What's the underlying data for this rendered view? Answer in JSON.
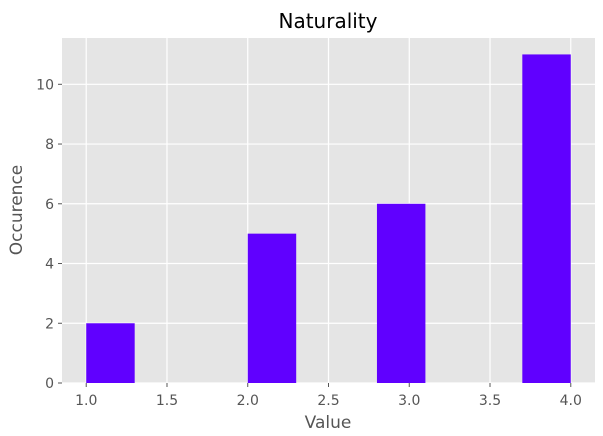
{
  "chart_data": {
    "type": "bar",
    "title": "Naturality",
    "xlabel": "Value",
    "ylabel": "Occurence",
    "xlim": [
      0.85,
      4.15
    ],
    "ylim": [
      0,
      11.55
    ],
    "xticks": [
      "1.0",
      "1.5",
      "2.0",
      "2.5",
      "3.0",
      "3.5",
      "4.0"
    ],
    "xtick_values": [
      1.0,
      1.5,
      2.0,
      2.5,
      3.0,
      3.5,
      4.0
    ],
    "yticks": [
      "0",
      "2",
      "4",
      "6",
      "8",
      "10"
    ],
    "ytick_values": [
      0,
      2,
      4,
      6,
      8,
      10
    ],
    "bin_width": 0.3,
    "bins": [
      {
        "left": 1.0,
        "value": 2
      },
      {
        "left": 2.0,
        "value": 5
      },
      {
        "left": 2.8,
        "value": 6
      },
      {
        "left": 3.7,
        "value": 11
      }
    ],
    "grid": true,
    "colors": {
      "bar": "#6000ff",
      "plot_background": "#e5e5e5",
      "grid": "#ffffff",
      "tick_text": "#555555"
    }
  }
}
